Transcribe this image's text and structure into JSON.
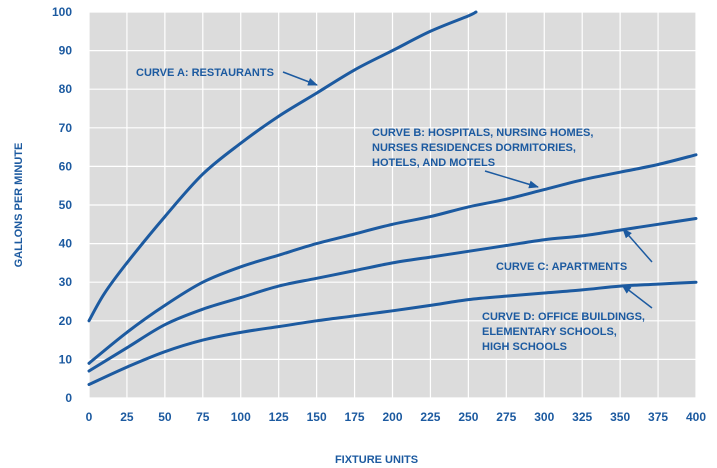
{
  "chart_data": {
    "type": "line",
    "title": "",
    "xlabel": "FIXTURE UNITS",
    "ylabel": "GALLONS PER MINUTE",
    "xlim": [
      0,
      400
    ],
    "ylim": [
      0,
      100
    ],
    "x_ticks": [
      "0",
      "25",
      "50",
      "75",
      "100",
      "125",
      "150",
      "175",
      "200",
      "225",
      "250",
      "275",
      "300",
      "325",
      "350",
      "375",
      "400"
    ],
    "y_ticks": [
      "0",
      "10",
      "20",
      "30",
      "40",
      "50",
      "60",
      "70",
      "80",
      "90",
      "100"
    ],
    "grid": true,
    "colors": {
      "line": "#1c5aa0",
      "grid": "#ffffff",
      "plot_bg": "#dcdcdc",
      "text": "#1c5aa0"
    },
    "series": [
      {
        "name": "CURVE A: RESTAURANTS",
        "x": [
          0,
          10,
          25,
          50,
          75,
          100,
          125,
          150,
          175,
          200,
          225,
          250,
          255
        ],
        "y": [
          20,
          27,
          35,
          47,
          58,
          66,
          73,
          79,
          85,
          90,
          95,
          99,
          100
        ]
      },
      {
        "name": "CURVE B: HOSPITALS, NURSING HOMES, NURSES RESIDENCES DORMITORIES, HOTELS, AND MOTELS",
        "x": [
          0,
          25,
          50,
          75,
          100,
          125,
          150,
          175,
          200,
          225,
          250,
          275,
          300,
          325,
          350,
          375,
          400
        ],
        "y": [
          9,
          17,
          24,
          30,
          34,
          37,
          40,
          42.5,
          45,
          47,
          49.5,
          51.5,
          54,
          56.5,
          58.5,
          60.5,
          63
        ]
      },
      {
        "name": "CURVE C: APARTMENTS",
        "x": [
          0,
          25,
          50,
          75,
          100,
          125,
          150,
          175,
          200,
          225,
          250,
          275,
          300,
          325,
          350,
          375,
          400
        ],
        "y": [
          7,
          13,
          19,
          23,
          26,
          29,
          31,
          33,
          35,
          36.5,
          38,
          39.5,
          41,
          42,
          43.5,
          45,
          46.5
        ]
      },
      {
        "name": "CURVE D: OFFICE BUILDINGS, ELEMENTARY SCHOOLS, HIGH SCHOOLS",
        "x": [
          0,
          25,
          50,
          75,
          100,
          125,
          150,
          175,
          200,
          225,
          250,
          275,
          300,
          325,
          350,
          375,
          400
        ],
        "y": [
          3.5,
          8,
          12,
          15,
          17,
          18.5,
          20,
          21.3,
          22.6,
          24,
          25.5,
          26.4,
          27.2,
          28,
          29,
          29.5,
          30
        ]
      }
    ],
    "annotations": [
      {
        "lines": [
          "CURVE A:  RESTAURANTS"
        ]
      },
      {
        "lines": [
          "CURVE B:  HOSPITALS, NURSING HOMES,",
          "NURSES RESIDENCES DORMITORIES,",
          "HOTELS, AND MOTELS"
        ]
      },
      {
        "lines": [
          "CURVE C:  APARTMENTS"
        ]
      },
      {
        "lines": [
          "CURVE D:  OFFICE BUILDINGS,",
          "ELEMENTARY SCHOOLS,",
          "HIGH SCHOOLS"
        ]
      }
    ]
  }
}
